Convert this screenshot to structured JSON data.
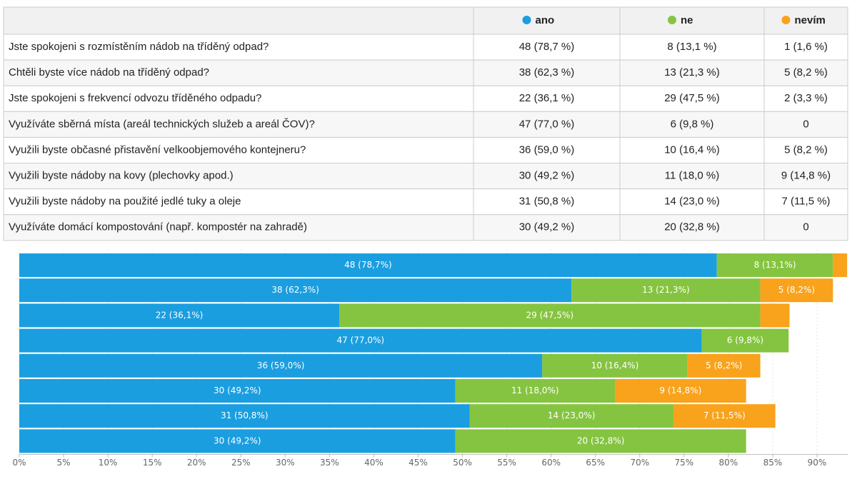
{
  "table": {
    "rows": [
      [
        "Jste spokojeni s rozmístěním nádob na tříděný odpad?",
        "48 (78,7 %)",
        "8 (13,1 %)",
        "1 (1,6 %)"
      ],
      [
        "Chtěli byste více nádob na tříděný odpad?",
        "38 (62,3 %)",
        "13 (21,3 %)",
        "5 (8,2 %)"
      ],
      [
        "Jste spokojeni s frekvencí odvozu tříděného odpadu?",
        "22 (36,1 %)",
        "29 (47,5 %)",
        "2 (3,3 %)"
      ],
      [
        "Využíváte sběrná místa (areál technických služeb a areál ČOV)?",
        "47 (77,0 %)",
        "6 (9,8 %)",
        "0"
      ],
      [
        "Využili byste občasné přistavění velkoobjemového kontejneru?",
        "36 (59,0 %)",
        "10 (16,4 %)",
        "5 (8,2 %)"
      ],
      [
        "Využili byste nádoby na kovy (plechovky apod.)",
        "30 (49,2 %)",
        "11 (18,0 %)",
        "9 (14,8 %)"
      ],
      [
        "Využili byste nádoby na použité jedlé tuky a oleje",
        "31 (50,8 %)",
        "14 (23,0 %)",
        "7 (11,5 %)"
      ],
      [
        "Využíváte domácí kompostování (např. kompostér na zahradě)",
        "30 (49,2 %)",
        "20 (32,8 %)",
        "0"
      ]
    ]
  },
  "chart_data": {
    "type": "stacked_barh",
    "grid": true,
    "series": [
      {
        "name": "ano",
        "color": "#1a9ee0",
        "values": [
          78.7,
          62.3,
          36.1,
          77.0,
          59.0,
          49.2,
          50.8,
          49.2
        ],
        "value_labels": [
          "48 (78,7%)",
          "38 (62,3%)",
          "22 (36,1%)",
          "47 (77,0%)",
          "36 (59,0%)",
          "30 (49,2%)",
          "31 (50,8%)",
          "30 (49,2%)"
        ]
      },
      {
        "name": "ne",
        "color": "#85c440",
        "values": [
          13.1,
          21.3,
          47.5,
          9.8,
          16.4,
          18.0,
          23.0,
          32.8
        ],
        "value_labels": [
          "8 (13,1%)",
          "13 (21,3%)",
          "29 (47,5%)",
          "6 (9,8%)",
          "10 (16,4%)",
          "11 (18,0%)",
          "14 (23,0%)",
          "20 (32,8%)"
        ]
      },
      {
        "name": "nevím",
        "color": "#f9a21b",
        "values": [
          1.6,
          8.2,
          3.3,
          0,
          8.2,
          14.8,
          11.5,
          0
        ],
        "value_labels": [
          null,
          "5 (8,2%)",
          null,
          null,
          "5 (8,2%)",
          "9 (14,8%)",
          "7 (11,5%)",
          null
        ]
      }
    ],
    "xlim": [
      0,
      93.5
    ],
    "xticks": [
      {
        "value": 0,
        "label": "0%"
      },
      {
        "value": 5,
        "label": "5%"
      },
      {
        "value": 10,
        "label": "10%"
      },
      {
        "value": 15,
        "label": "15%"
      },
      {
        "value": 20,
        "label": "20%"
      },
      {
        "value": 25,
        "label": "25%"
      },
      {
        "value": 30,
        "label": "30%"
      },
      {
        "value": 35,
        "label": "35%"
      },
      {
        "value": 40,
        "label": "40%"
      },
      {
        "value": 45,
        "label": "45%"
      },
      {
        "value": 50,
        "label": "50%"
      },
      {
        "value": 55,
        "label": "55%"
      },
      {
        "value": 60,
        "label": "60%"
      },
      {
        "value": 65,
        "label": "65%"
      },
      {
        "value": 70,
        "label": "70%"
      },
      {
        "value": 75,
        "label": "75%"
      },
      {
        "value": 80,
        "label": "80%"
      },
      {
        "value": 85,
        "label": "85%"
      },
      {
        "value": 90,
        "label": "90%"
      }
    ]
  }
}
